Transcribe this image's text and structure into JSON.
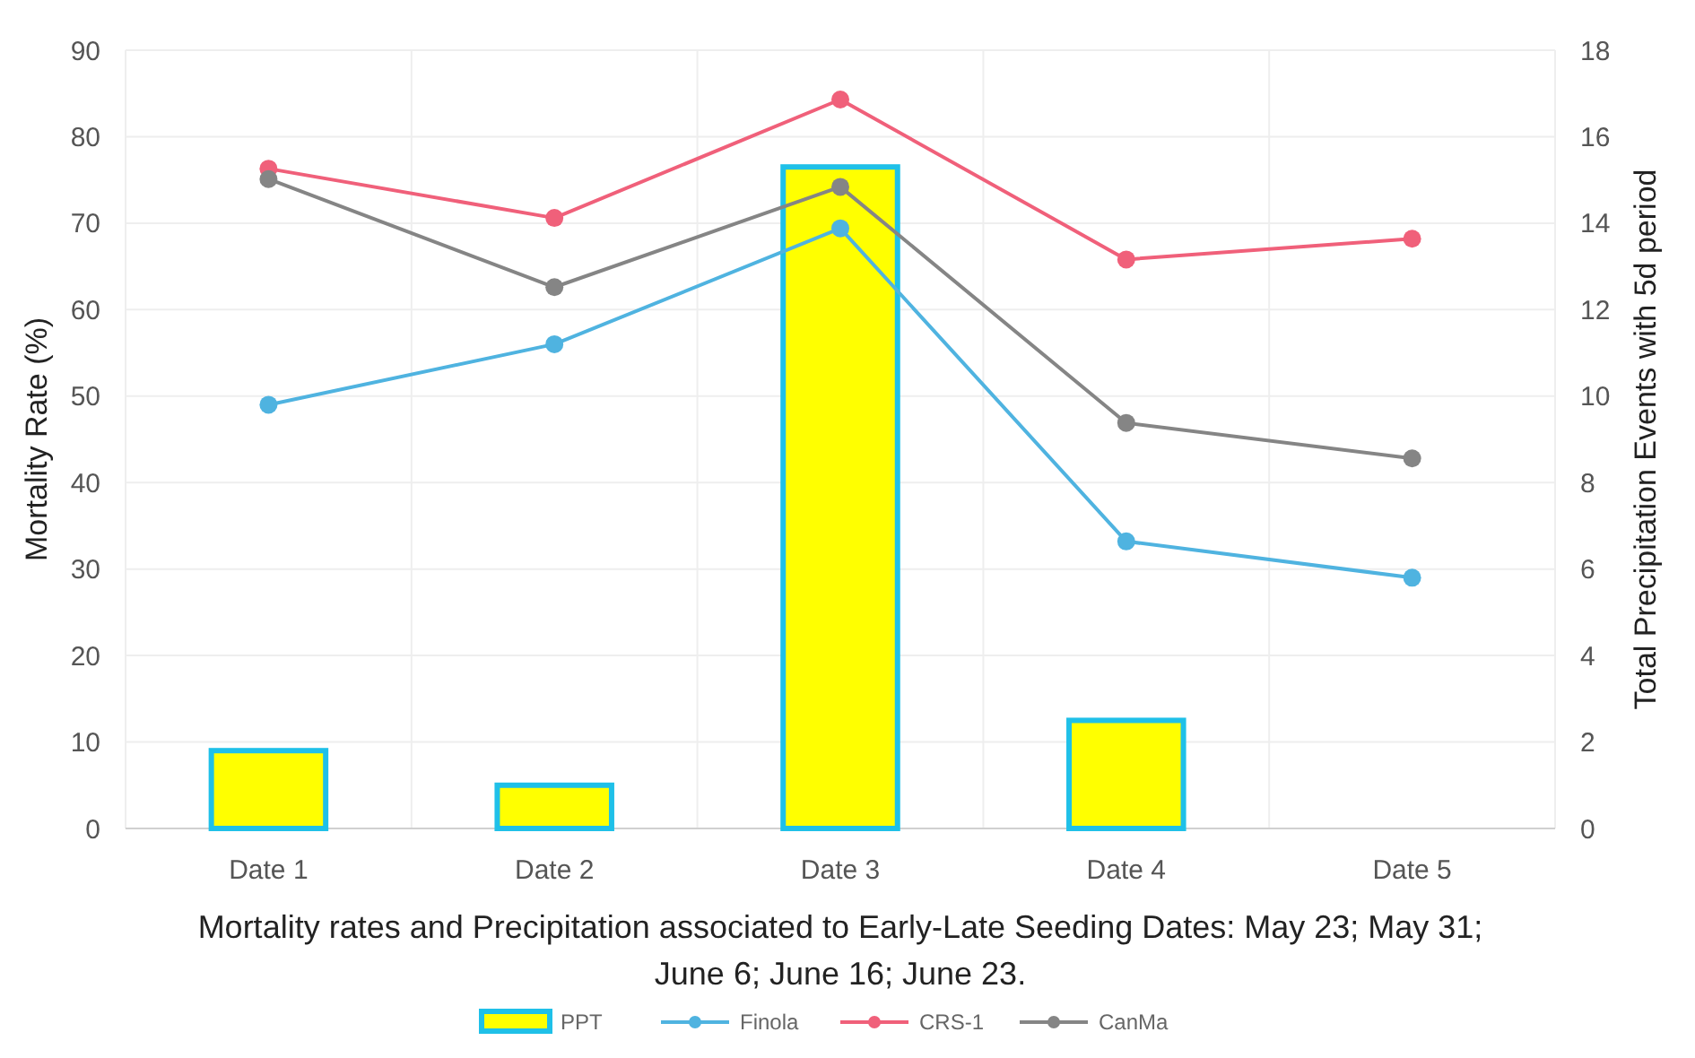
{
  "chart_data": {
    "type": "line",
    "xlabel": "Mortality rates and Precipitation associated to Early-Late Seeding Dates: May 23; May 31; June 6; June 16; June 23.",
    "ylabel": "Mortality Rate (%)",
    "y2label": "Total Precipitation Events with 5d period",
    "categories": [
      "Date 1",
      "Date 2",
      "Date 3",
      "Date 4",
      "Date 5"
    ],
    "series": [
      {
        "name": "PPT",
        "type": "bar",
        "axis": "y2",
        "color": "#ffff00",
        "values": [
          1.8,
          1.0,
          15.3,
          2.5,
          0
        ]
      },
      {
        "name": "Finola",
        "color": "#4fb3e0",
        "values": [
          49,
          56,
          69.4,
          33.2,
          29
        ]
      },
      {
        "name": "CRS-1",
        "color": "#f0607a",
        "values": [
          76.3,
          70.6,
          84.3,
          65.8,
          68.2
        ]
      },
      {
        "name": "CanMa",
        "color": "#858585",
        "values": [
          75.1,
          62.6,
          74.2,
          46.9,
          42.8
        ]
      }
    ],
    "ylim": [
      0,
      90
    ],
    "yticks": [
      0,
      10,
      20,
      30,
      40,
      50,
      60,
      70,
      80,
      90
    ],
    "y2lim": [
      0,
      18
    ],
    "y2ticks": [
      0,
      2,
      4,
      6,
      8,
      10,
      12,
      14,
      16,
      18
    ],
    "grid": true,
    "legend": "bottom",
    "marker": "circle",
    "line_style": "solid"
  }
}
